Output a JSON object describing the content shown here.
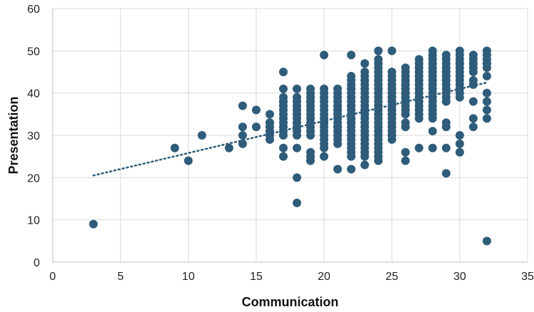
{
  "chart_data": {
    "type": "scatter",
    "xlabel": "Communication",
    "ylabel": "Presentation",
    "xlim": [
      0,
      35
    ],
    "ylim": [
      0,
      60
    ],
    "x_ticks": [
      0,
      5,
      10,
      15,
      20,
      25,
      30,
      35
    ],
    "y_ticks": [
      0,
      10,
      20,
      30,
      40,
      50,
      60
    ],
    "grid": true,
    "legend": "none",
    "colors": {
      "point": "#2E5C7A",
      "trendline": "#2E5C7A"
    },
    "trendline": {
      "style": "dotted",
      "x": [
        3,
        32
      ],
      "y": [
        20.5,
        42.5
      ]
    },
    "points": {
      "x": [
        3,
        9,
        10,
        11,
        13,
        14,
        14,
        14,
        14,
        15,
        15,
        16,
        16,
        16,
        16,
        16,
        16,
        16,
        17,
        17,
        17,
        17,
        17,
        17,
        17,
        17,
        17,
        17,
        17,
        17,
        17,
        17,
        17,
        18,
        18,
        18,
        18,
        18,
        18,
        18,
        18,
        18,
        18,
        18,
        18,
        18,
        18,
        19,
        19,
        19,
        19,
        19,
        19,
        19,
        19,
        19,
        19,
        19,
        19,
        19,
        19,
        19,
        19,
        20,
        20,
        20,
        20,
        20,
        20,
        20,
        20,
        20,
        20,
        20,
        20,
        20,
        20,
        20,
        20,
        20,
        21,
        21,
        21,
        21,
        21,
        21,
        21,
        21,
        21,
        21,
        21,
        21,
        21,
        21,
        21,
        21,
        21,
        21,
        22,
        22,
        22,
        22,
        22,
        22,
        22,
        22,
        22,
        22,
        22,
        22,
        22,
        22,
        22,
        22,
        22,
        22,
        22,
        22,
        22,
        22,
        22,
        22,
        22,
        22,
        23,
        23,
        23,
        23,
        23,
        23,
        23,
        23,
        23,
        23,
        23,
        23,
        23,
        23,
        23,
        23,
        23,
        23,
        23,
        23,
        23,
        23,
        23,
        23,
        23,
        24,
        24,
        24,
        24,
        24,
        24,
        24,
        24,
        24,
        24,
        24,
        24,
        24,
        24,
        24,
        24,
        24,
        24,
        24,
        24,
        24,
        24,
        24,
        24,
        24,
        24,
        24,
        25,
        25,
        25,
        25,
        25,
        25,
        25,
        25,
        25,
        25,
        25,
        25,
        25,
        25,
        25,
        25,
        25,
        25,
        25,
        25,
        25,
        25,
        25,
        25,
        25,
        26,
        26,
        26,
        26,
        26,
        26,
        26,
        26,
        26,
        26,
        26,
        26,
        26,
        26,
        26,
        26,
        26,
        26,
        26,
        26,
        27,
        27,
        27,
        27,
        27,
        27,
        27,
        27,
        27,
        27,
        27,
        27,
        27,
        27,
        27,
        27,
        27,
        28,
        28,
        28,
        28,
        28,
        28,
        28,
        28,
        28,
        28,
        28,
        28,
        28,
        28,
        28,
        28,
        28,
        28,
        28,
        28,
        29,
        29,
        29,
        29,
        29,
        29,
        29,
        29,
        29,
        29,
        29,
        29,
        29,
        29,
        29,
        29,
        29,
        29,
        30,
        30,
        30,
        30,
        30,
        30,
        30,
        30,
        30,
        30,
        30,
        30,
        30,
        30,
        30,
        30,
        30,
        31,
        31,
        31,
        31,
        31,
        31,
        31,
        31,
        31,
        31,
        32,
        32,
        32,
        32,
        32,
        32,
        32,
        32,
        32,
        32,
        32,
        32,
        32
      ],
      "y": [
        9,
        27,
        24,
        30,
        27,
        37,
        32,
        28,
        30,
        36,
        32,
        35,
        33,
        32,
        31,
        30,
        29,
        33,
        45,
        41,
        39,
        38,
        37,
        36,
        35,
        34,
        33,
        32,
        31,
        30,
        27,
        25,
        38,
        41,
        39,
        38,
        37,
        36,
        35,
        33,
        32,
        31,
        30,
        27,
        20,
        14,
        34,
        41,
        40,
        39,
        38,
        37,
        36,
        35,
        34,
        33,
        32,
        31,
        30,
        26,
        25,
        24,
        38,
        49,
        41,
        40,
        38,
        36,
        35,
        34,
        33,
        32,
        31,
        30,
        29,
        28,
        27,
        25,
        39,
        37,
        41,
        40,
        38,
        37,
        36,
        35,
        34,
        33,
        32,
        31,
        30,
        29,
        28,
        22,
        39,
        36,
        35,
        32,
        49,
        44,
        42,
        41,
        40,
        39,
        38,
        37,
        36,
        35,
        34,
        33,
        32,
        31,
        30,
        29,
        28,
        27,
        26,
        25,
        22,
        43,
        41,
        33,
        37,
        34,
        47,
        45,
        43,
        42,
        41,
        40,
        39,
        38,
        37,
        36,
        35,
        34,
        33,
        32,
        31,
        30,
        29,
        28,
        27,
        26,
        25,
        23,
        44,
        39,
        36,
        50,
        48,
        47,
        46,
        45,
        44,
        43,
        42,
        41,
        40,
        39,
        38,
        37,
        36,
        35,
        34,
        33,
        32,
        31,
        30,
        29,
        28,
        27,
        26,
        25,
        24,
        41,
        50,
        45,
        44,
        43,
        42,
        41,
        40,
        39,
        38,
        37,
        36,
        35,
        34,
        33,
        32,
        31,
        30,
        29,
        38,
        37,
        41,
        36,
        40,
        35,
        39,
        46,
        45,
        44,
        43,
        42,
        41,
        40,
        39,
        38,
        37,
        36,
        35,
        33,
        32,
        26,
        24,
        42,
        39,
        38,
        40,
        48,
        47,
        46,
        45,
        44,
        43,
        42,
        41,
        40,
        39,
        38,
        37,
        36,
        35,
        34,
        27,
        44,
        50,
        49,
        48,
        47,
        46,
        45,
        44,
        43,
        42,
        41,
        40,
        39,
        38,
        37,
        36,
        35,
        34,
        31,
        27,
        45,
        49,
        48,
        47,
        46,
        45,
        44,
        43,
        42,
        41,
        40,
        39,
        38,
        33,
        32,
        27,
        21,
        45,
        44,
        50,
        49,
        48,
        47,
        46,
        45,
        44,
        43,
        42,
        41,
        40,
        39,
        30,
        28,
        26,
        47,
        44,
        49,
        48,
        47,
        46,
        43,
        42,
        38,
        34,
        32,
        45,
        50,
        49,
        48,
        47,
        44,
        40,
        38,
        36,
        34,
        5,
        46,
        49,
        47
      ]
    }
  }
}
